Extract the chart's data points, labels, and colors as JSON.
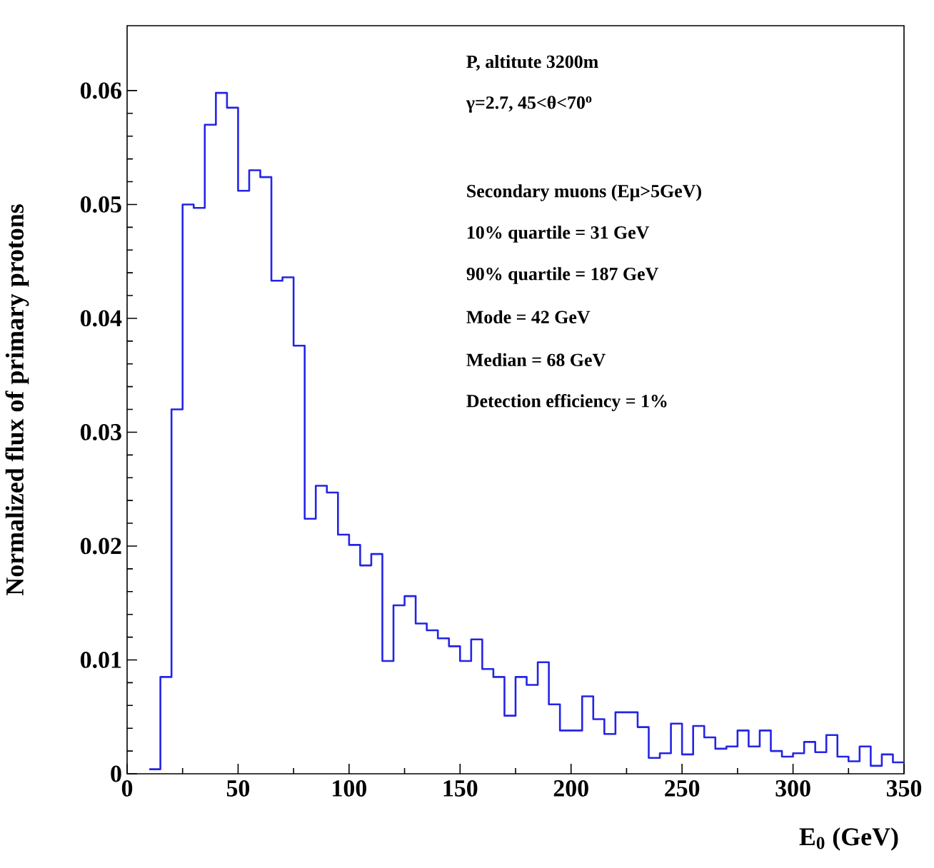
{
  "chart_data": {
    "type": "histogram",
    "xlabel": "E$_{0}$ (GeV)",
    "ylabel": "Normalized flux of primary protons",
    "bins": [
      10,
      15,
      20,
      25,
      30,
      35,
      40,
      45,
      50,
      55,
      60,
      65,
      70,
      75,
      80,
      85,
      90,
      95,
      100,
      105,
      110,
      115,
      120,
      125,
      130,
      135,
      140,
      145,
      150,
      155,
      160,
      165,
      170,
      175,
      180,
      185,
      190,
      195,
      200,
      205,
      210,
      215,
      220,
      225,
      230,
      235,
      240,
      245,
      250,
      255,
      260,
      265,
      270,
      275,
      280,
      285,
      290,
      295,
      300,
      305,
      310,
      315,
      320,
      325,
      330,
      335,
      340,
      345,
      350
    ],
    "values": [
      0.0004,
      0.0085,
      0.032,
      0.05,
      0.0497,
      0.057,
      0.0598,
      0.0585,
      0.0512,
      0.053,
      0.0524,
      0.0433,
      0.0436,
      0.0376,
      0.0224,
      0.0253,
      0.0247,
      0.021,
      0.0201,
      0.0183,
      0.0193,
      0.0099,
      0.0148,
      0.0156,
      0.0132,
      0.0126,
      0.0119,
      0.0112,
      0.0099,
      0.0118,
      0.0092,
      0.0085,
      0.0051,
      0.0085,
      0.0078,
      0.0098,
      0.0061,
      0.0038,
      0.0038,
      0.0068,
      0.0048,
      0.0035,
      0.0054,
      0.0054,
      0.0041,
      0.0014,
      0.0018,
      0.0044,
      0.0017,
      0.0042,
      0.0032,
      0.0022,
      0.0024,
      0.0038,
      0.0024,
      0.0038,
      0.002,
      0.0015,
      0.0018,
      0.0028,
      0.0019,
      0.0034,
      0.0015,
      0.0011,
      0.0024,
      0.0007,
      0.0017,
      0.001
    ],
    "color": "#2424e6",
    "xlim": [
      0,
      350
    ],
    "xticks": [
      0,
      50,
      100,
      150,
      200,
      250,
      300,
      350
    ],
    "ylim": [
      0,
      0.0657
    ],
    "yticks": [
      0,
      0.01,
      0.02,
      0.03,
      0.04,
      0.05,
      0.06
    ],
    "annotations": [
      "P, altitute 3200m",
      "γ=2.7, 45<θ<70$^{o}$",
      "Secondary muons (Eμ>5GeV)",
      "10% quartile = 31 GeV",
      "90% quartile = 187 GeV",
      "Mode = 42 GeV",
      "Median = 68 GeV",
      "Detection efficiency = 1%"
    ]
  }
}
